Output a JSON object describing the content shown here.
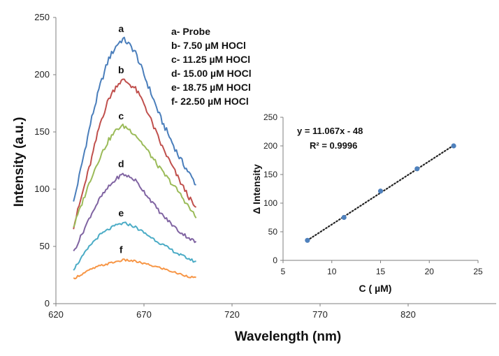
{
  "chart_data": [
    {
      "type": "line",
      "xlabel": "Wavelength (nm)",
      "ylabel": "Intensity (a.u.)",
      "xlim": [
        620,
        870
      ],
      "ylim": [
        0,
        250
      ],
      "xticks": [
        620,
        670,
        720,
        770,
        820
      ],
      "yticks": [
        0,
        50,
        100,
        150,
        200,
        250
      ],
      "grid": false,
      "legend_entries": [
        "a- Probe",
        "b- 7.50 µM HOCl",
        "c- 11.25 µM HOCl",
        "d- 15.00 µM HOCl",
        "e- 18.75 µM HOCl",
        "f- 22.50 µM HOCl"
      ],
      "x": [
        630,
        640,
        645,
        650,
        655,
        658,
        660,
        665,
        670,
        680,
        690,
        700
      ],
      "series": [
        {
          "name": "a",
          "color": "#4a7ebb",
          "values": [
            88,
            160,
            190,
            214,
            227,
            231,
            229,
            220,
            200,
            160,
            128,
            103
          ]
        },
        {
          "name": "b",
          "color": "#c0504d",
          "values": [
            67,
            125,
            157,
            179,
            192,
            195,
            194,
            188,
            175,
            138,
            108,
            81
          ]
        },
        {
          "name": "c",
          "color": "#9bbb59",
          "values": [
            67,
            110,
            128,
            143,
            153,
            155,
            154,
            148,
            138,
            116,
            97,
            74
          ]
        },
        {
          "name": "d",
          "color": "#8064a2",
          "values": [
            45,
            78,
            92,
            102,
            110,
            113,
            112,
            108,
            98,
            78,
            63,
            53
          ]
        },
        {
          "name": "e",
          "color": "#4bacc6",
          "values": [
            30,
            52,
            60,
            65,
            69,
            70,
            70,
            67,
            62,
            52,
            43,
            36
          ]
        },
        {
          "name": "f",
          "color": "#f79646",
          "values": [
            22,
            30,
            33,
            35,
            37,
            38,
            38,
            37,
            35,
            31,
            26,
            22
          ]
        }
      ],
      "curve_labels": [
        "a",
        "b",
        "c",
        "d",
        "e",
        "f"
      ]
    },
    {
      "type": "scatter",
      "xlabel": "C ( µM)",
      "ylabel": "Δ Intensity",
      "xlim": [
        5,
        25
      ],
      "ylim": [
        0,
        250
      ],
      "xticks": [
        5,
        10,
        15,
        20,
        25
      ],
      "yticks": [
        0,
        50,
        100,
        150,
        200,
        250
      ],
      "grid": false,
      "x": [
        7.5,
        11.25,
        15.0,
        18.75,
        22.5
      ],
      "y": [
        35,
        75,
        121,
        160,
        200
      ],
      "trendline": {
        "slope": 11.067,
        "intercept": -48,
        "style": "dotted"
      },
      "equation": "y = 11.067x - 48",
      "r_squared": "R² = 0.9996"
    }
  ],
  "colors": {
    "axis": "#7f7f7f",
    "marker": "#4f81bd",
    "trendline": "#222222"
  }
}
